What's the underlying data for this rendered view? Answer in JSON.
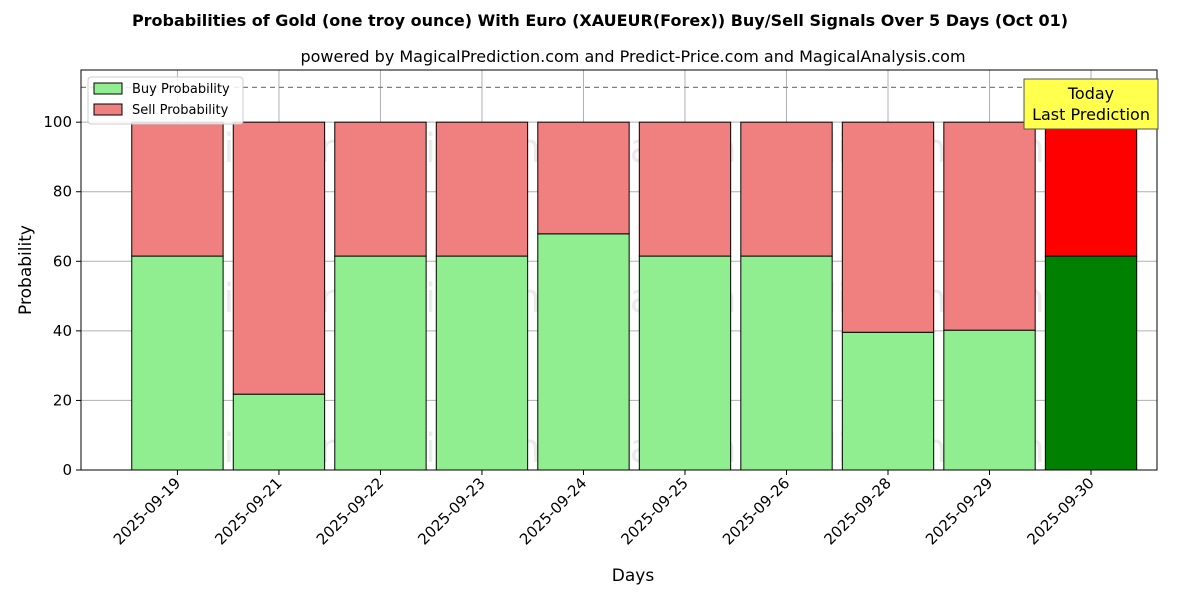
{
  "chart_data": {
    "type": "bar",
    "stacked": true,
    "title": "Probabilities of Gold (one troy ounce) With Euro (XAUEUR(Forex)) Buy/Sell Signals Over 5 Days (Oct 01)",
    "subtitle": "powered by MagicalPrediction.com and Predict-Price.com and MagicalAnalysis.com",
    "xlabel": "Days",
    "ylabel": "Probability",
    "ylim": [
      0,
      115
    ],
    "yticks": [
      0,
      20,
      40,
      60,
      80,
      100
    ],
    "grid": true,
    "legend_position": "top-left",
    "reference_line": 110,
    "categories": [
      "2025-09-19",
      "2025-09-21",
      "2025-09-22",
      "2025-09-23",
      "2025-09-24",
      "2025-09-25",
      "2025-09-26",
      "2025-09-28",
      "2025-09-29",
      "2025-09-30"
    ],
    "series": [
      {
        "name": "Buy Probability",
        "color": "#90ee90",
        "highlight_color": "#008000",
        "values": [
          61.5,
          21.8,
          61.5,
          61.5,
          67.9,
          61.5,
          61.5,
          39.6,
          40.2,
          61.5
        ]
      },
      {
        "name": "Sell Probability",
        "color": "#f08080",
        "highlight_color": "#ff0000",
        "values": [
          38.5,
          78.2,
          38.5,
          38.5,
          32.1,
          38.5,
          38.5,
          60.4,
          59.8,
          38.5
        ]
      }
    ],
    "highlight_index": 9,
    "annotation": {
      "lines": [
        "Today",
        "Last Prediction"
      ],
      "background": "#ffff4d"
    },
    "watermarks": [
      "MagicalAnalysis.com",
      "MagicalPrediction.com"
    ]
  }
}
